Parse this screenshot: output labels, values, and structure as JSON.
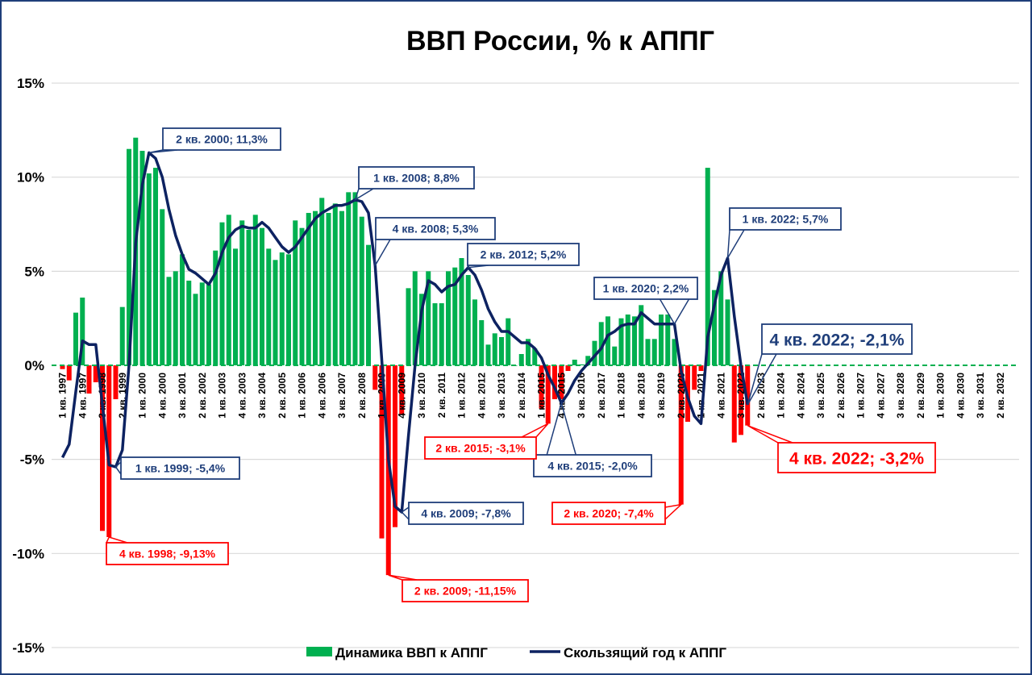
{
  "chart_data": {
    "type": "bar+line",
    "title": "ВВП России, % к АППГ",
    "xlabel": "",
    "ylabel": "",
    "ylim": [
      -15,
      15
    ],
    "y_ticks": [
      15,
      10,
      5,
      0,
      -5,
      -10,
      -15
    ],
    "y_tick_labels": [
      "15%",
      "10%",
      "5%",
      "0%",
      "-5%",
      "-10%",
      "-15%"
    ],
    "grid": true,
    "x_axis": {
      "first_quarter": "1 кв. 1997",
      "last_quarter": "4 кв. 2032",
      "quarters_total": 144,
      "tick_every_quarters": 3
    },
    "tick_labels": [
      "1 кв. 1997",
      "4 кв. 1997",
      "3 кв. 1998",
      "2 кв. 1999",
      "1 кв. 2000",
      "4 кв. 2000",
      "3 кв. 2001",
      "2 кв. 2002",
      "1 кв. 2003",
      "4 кв. 2003",
      "3 кв. 2004",
      "2 кв. 2005",
      "1 кв. 2006",
      "4 кв. 2006",
      "3 кв. 2007",
      "2 кв. 2008",
      "1 кв. 2009",
      "4 кв. 2009",
      "3 кв. 2010",
      "2 кв. 2011",
      "1 кв. 2012",
      "4 кв. 2012",
      "3 кв. 2013",
      "2 кв. 2014",
      "1 кв. 2015",
      "4 кв. 2015",
      "3 кв. 2016",
      "2 кв. 2017",
      "1 кв. 2018",
      "4 кв. 2018",
      "3 кв. 2019",
      "2 кв. 2020",
      "1 кв. 2021",
      "4 кв. 2021",
      "3 кв. 2022",
      "2 кв. 2023",
      "1 кв. 2024",
      "4 кв. 2024",
      "3 кв. 2025",
      "2 кв. 2026",
      "1 кв. 2027",
      "4 кв. 2027",
      "3 кв. 2028",
      "2 кв. 2029",
      "1 кв. 2030",
      "4 кв. 2030",
      "3 кв. 2031",
      "2 кв. 2032"
    ],
    "legend_position": "bottom",
    "series": [
      {
        "name": "Динамика ВВП к АППГ",
        "kind": "bar",
        "color_positive": "#00b050",
        "color_negative": "#ff0000",
        "values": [
          -0.2,
          -0.8,
          2.8,
          3.6,
          -1.5,
          -0.9,
          -8.8,
          -9.13,
          -1.8,
          3.1,
          11.5,
          12.1,
          11.4,
          10.2,
          10.5,
          8.3,
          4.7,
          5.0,
          5.9,
          4.5,
          3.8,
          4.4,
          4.3,
          6.1,
          7.6,
          8.0,
          6.2,
          7.7,
          7.2,
          8.0,
          7.3,
          6.2,
          5.6,
          6.0,
          5.9,
          7.7,
          7.3,
          8.1,
          8.2,
          8.9,
          8.1,
          8.6,
          8.2,
          9.2,
          9.2,
          7.9,
          6.4,
          -1.3,
          -9.2,
          -11.15,
          -8.6,
          -2.6,
          4.1,
          5.0,
          3.8,
          5.0,
          3.3,
          3.3,
          5.0,
          5.2,
          5.7,
          4.8,
          3.5,
          2.4,
          1.1,
          1.7,
          1.5,
          2.5,
          0.0,
          0.6,
          1.4,
          0.9,
          -2.3,
          -3.1,
          -1.8,
          -1.8,
          -0.3,
          0.3,
          0.05,
          0.5,
          1.3,
          2.3,
          2.6,
          1.0,
          2.5,
          2.7,
          2.6,
          3.2,
          1.4,
          1.4,
          2.7,
          2.7,
          1.4,
          -7.4,
          -3.0,
          -1.3,
          -0.3,
          10.5,
          4.0,
          5.0,
          3.5,
          -4.1,
          -3.7,
          -3.2
        ]
      },
      {
        "name": "Скользящий год к АППГ",
        "kind": "line",
        "color": "#0d2261",
        "values": [
          -4.9,
          -4.2,
          -1.4,
          1.3,
          1.1,
          1.1,
          -2.1,
          -5.3,
          -5.4,
          -4.5,
          0.0,
          6.5,
          9.6,
          11.3,
          11.0,
          10.0,
          8.3,
          6.9,
          5.9,
          5.1,
          4.9,
          4.6,
          4.3,
          4.9,
          6.0,
          6.8,
          7.2,
          7.4,
          7.3,
          7.3,
          7.6,
          7.3,
          6.8,
          6.3,
          6.0,
          6.3,
          6.8,
          7.3,
          7.8,
          8.1,
          8.3,
          8.5,
          8.5,
          8.6,
          8.8,
          8.7,
          8.1,
          5.3,
          0.3,
          -5.0,
          -7.5,
          -7.8,
          -3.8,
          0.0,
          2.9,
          4.5,
          4.3,
          3.9,
          4.2,
          4.3,
          4.8,
          5.2,
          4.8,
          4.0,
          3.0,
          2.3,
          1.8,
          1.8,
          1.5,
          1.2,
          1.2,
          0.9,
          0.4,
          -0.5,
          -1.2,
          -2.0,
          -1.5,
          -0.8,
          -0.3,
          0.1,
          0.5,
          0.9,
          1.6,
          1.8,
          2.1,
          2.2,
          2.2,
          2.8,
          2.5,
          2.2,
          2.2,
          2.2,
          2.2,
          -0.3,
          -1.7,
          -2.7,
          -3.1,
          1.5,
          3.2,
          4.8,
          5.7,
          2.6,
          0.0,
          -2.1
        ]
      }
    ],
    "annotations": [
      {
        "text": "2 кв. 2000; 11,3%",
        "series": "line",
        "quarter_index": 13,
        "color": "#1f3e7a"
      },
      {
        "text": "1 кв. 2008; 8,8%",
        "series": "line",
        "quarter_index": 44,
        "color": "#1f3e7a"
      },
      {
        "text": "4 кв. 2008; 5,3%",
        "series": "line",
        "quarter_index": 47,
        "color": "#1f3e7a"
      },
      {
        "text": "2 кв. 2012; 5,2%",
        "series": "line",
        "quarter_index": 61,
        "color": "#1f3e7a"
      },
      {
        "text": "1 кв. 2020; 2,2%",
        "series": "line",
        "quarter_index": 92,
        "color": "#1f3e7a"
      },
      {
        "text": "1 кв. 2022; 5,7%",
        "series": "line",
        "quarter_index": 100,
        "color": "#1f3e7a"
      },
      {
        "text": "4 кв. 2022; -2,1%",
        "series": "line",
        "quarter_index": 103,
        "color": "#1f3e7a",
        "emphasis": true
      },
      {
        "text": "1 кв. 1999; -5,4%",
        "series": "line",
        "quarter_index": 8,
        "color": "#1f3e7a"
      },
      {
        "text": "4 кв. 2009; -7,8%",
        "series": "line",
        "quarter_index": 51,
        "color": "#1f3e7a"
      },
      {
        "text": "4 кв. 2015; -2,0%",
        "series": "line",
        "quarter_index": 75,
        "color": "#1f3e7a"
      },
      {
        "text": "4 кв. 1998; -9,13%",
        "series": "bar",
        "quarter_index": 7,
        "color": "#ff0000"
      },
      {
        "text": "2 кв. 2009; -11,15%",
        "series": "bar",
        "quarter_index": 49,
        "color": "#ff0000"
      },
      {
        "text": "2 кв. 2015; -3,1%",
        "series": "bar",
        "quarter_index": 73,
        "color": "#ff0000"
      },
      {
        "text": "2 кв. 2020; -7,4%",
        "series": "bar",
        "quarter_index": 93,
        "color": "#ff0000"
      },
      {
        "text": "4 кв. 2022; -3,2%",
        "series": "bar",
        "quarter_index": 103,
        "color": "#ff0000",
        "emphasis": true
      }
    ]
  }
}
